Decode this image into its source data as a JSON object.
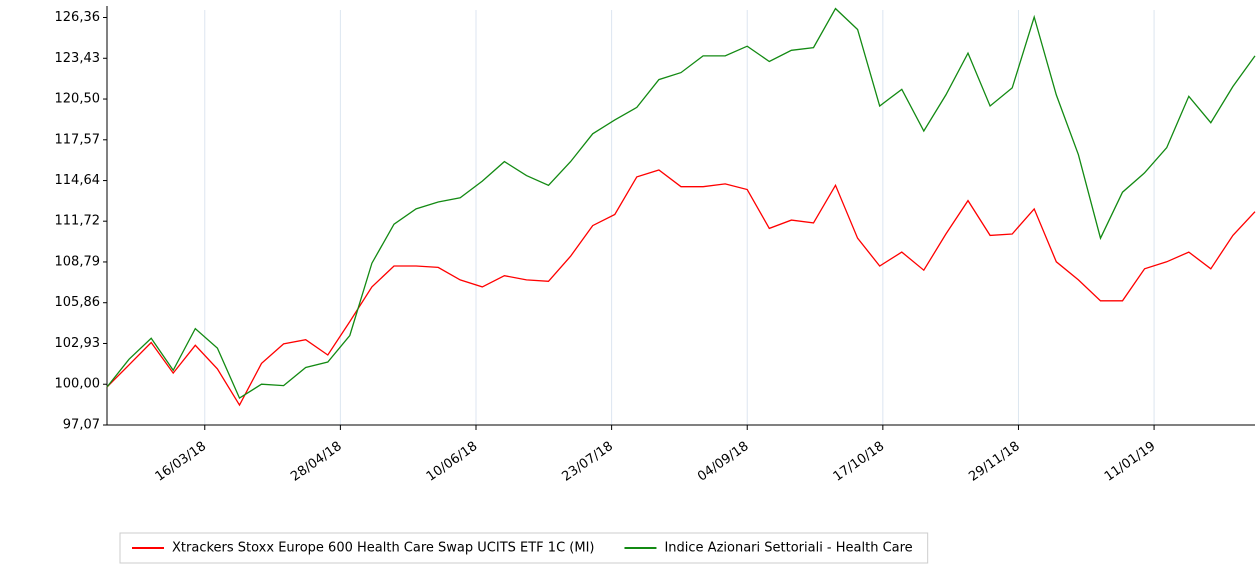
{
  "chart_data": {
    "type": "line",
    "x": [
      "13/02/18",
      "20/02/18",
      "27/02/18",
      "06/03/18",
      "13/03/18",
      "20/03/18",
      "27/03/18",
      "03/04/18",
      "10/04/18",
      "17/04/18",
      "24/04/18",
      "01/05/18",
      "08/05/18",
      "15/05/18",
      "22/05/18",
      "29/05/18",
      "05/06/18",
      "12/06/18",
      "19/06/18",
      "26/06/18",
      "03/07/18",
      "10/07/18",
      "17/07/18",
      "24/07/18",
      "31/07/18",
      "07/08/18",
      "14/08/18",
      "21/08/18",
      "28/08/18",
      "04/09/18",
      "11/09/18",
      "18/09/18",
      "25/09/18",
      "02/10/18",
      "09/10/18",
      "16/10/18",
      "23/10/18",
      "30/10/18",
      "06/11/18",
      "13/11/18",
      "20/11/18",
      "27/11/18",
      "04/12/18",
      "11/12/18",
      "18/12/18",
      "25/12/18",
      "01/01/19",
      "08/01/19",
      "15/01/19",
      "22/01/19",
      "29/01/19",
      "05/02/19",
      "12/02/19"
    ],
    "series": [
      {
        "name": "Xtrackers Stoxx Europe 600 Health Care Swap UCITS ETF 1C (MI)",
        "color": "#ff0000",
        "values": [
          99.8,
          101.4,
          103.0,
          100.8,
          102.8,
          101.1,
          98.5,
          101.5,
          102.9,
          103.2,
          102.1,
          104.5,
          107.0,
          108.5,
          108.5,
          108.4,
          107.5,
          107.0,
          107.8,
          107.5,
          107.4,
          109.2,
          111.4,
          112.2,
          114.9,
          115.4,
          114.2,
          114.2,
          114.4,
          114.0,
          111.2,
          111.8,
          111.6,
          114.3,
          110.5,
          108.5,
          109.5,
          108.2,
          110.8,
          113.2,
          110.7,
          110.8,
          112.6,
          108.8,
          107.5,
          106.0,
          106.0,
          108.3,
          108.8,
          109.5,
          108.3,
          110.7,
          112.4
        ]
      },
      {
        "name": "Indice Azionari Settoriali - Health Care",
        "color": "#138a13",
        "values": [
          99.8,
          101.8,
          103.3,
          101.0,
          104.0,
          102.6,
          99.0,
          100.0,
          99.9,
          101.2,
          101.6,
          103.5,
          108.7,
          111.5,
          112.6,
          113.1,
          113.4,
          114.6,
          116.0,
          115.0,
          114.3,
          116.0,
          118.0,
          119.0,
          119.9,
          121.9,
          122.4,
          123.6,
          123.6,
          124.3,
          123.2,
          124.0,
          124.2,
          127.0,
          125.5,
          120.0,
          121.2,
          118.2,
          120.8,
          123.8,
          120.0,
          121.3,
          126.4,
          120.8,
          116.5,
          110.5,
          113.8,
          115.2,
          117.0,
          120.7,
          118.8,
          121.4,
          123.6
        ]
      }
    ],
    "xlim": [
      "13/02/18",
      "12/02/19"
    ],
    "xticks": [
      "16/03/18",
      "28/04/18",
      "10/06/18",
      "23/07/18",
      "04/09/18",
      "17/10/18",
      "29/11/18",
      "11/01/19"
    ],
    "ylim": [
      97.07,
      126.9
    ],
    "yticks": [
      {
        "value": 97.07,
        "label": "97,07"
      },
      {
        "value": 100.0,
        "label": "100,00"
      },
      {
        "value": 102.93,
        "label": "102,93"
      },
      {
        "value": 105.86,
        "label": "105,86"
      },
      {
        "value": 108.79,
        "label": "108,79"
      },
      {
        "value": 111.72,
        "label": "111,72"
      },
      {
        "value": 114.64,
        "label": "114,64"
      },
      {
        "value": 117.57,
        "label": "117,57"
      },
      {
        "value": 120.5,
        "label": "120,50"
      },
      {
        "value": 123.43,
        "label": "123,43"
      },
      {
        "value": 126.36,
        "label": "126,36"
      }
    ],
    "grid": "x",
    "legend": "bottom"
  }
}
